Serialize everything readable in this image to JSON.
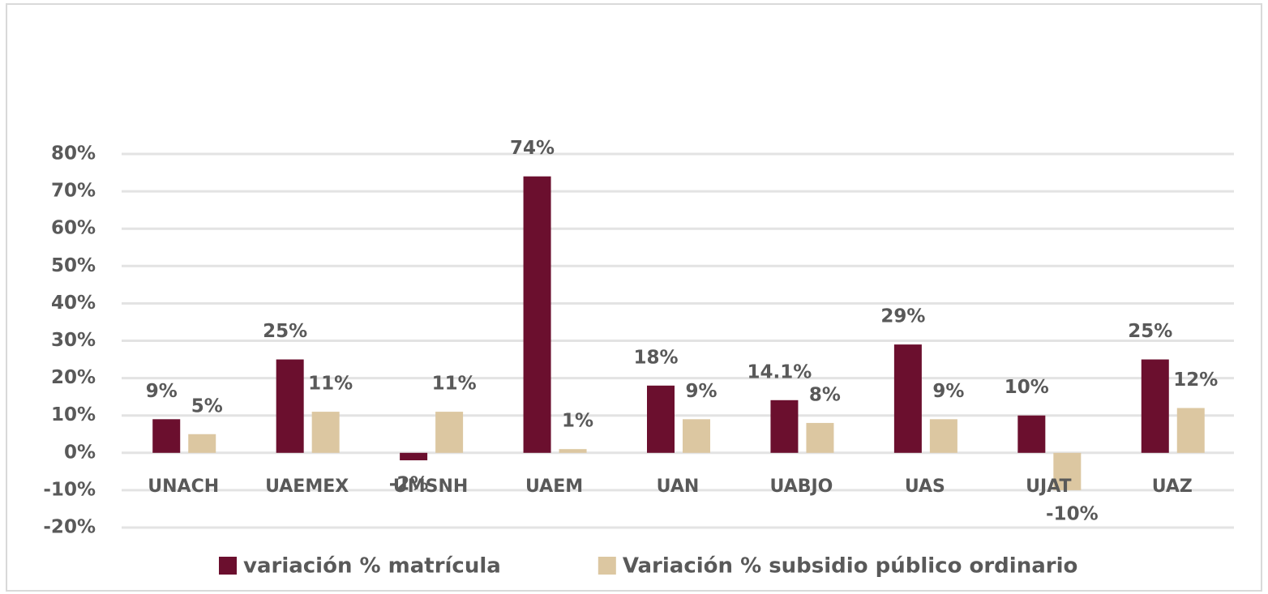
{
  "chart_data": {
    "type": "bar",
    "categories": [
      "UNACH",
      "UAEMEX",
      "UMSNH",
      "UAEM",
      "UAN",
      "UABJO",
      "UAS",
      "UJAT",
      "UAZ"
    ],
    "series": [
      {
        "name": "variación % matrícula",
        "color": "#6b0f2e",
        "values": [
          9,
          25,
          -2,
          74,
          18,
          14.1,
          29,
          10,
          25
        ],
        "value_labels": [
          "9%",
          "25%",
          "-2%",
          "74%",
          "18%",
          "14.1%",
          "29%",
          "10%",
          "25%"
        ]
      },
      {
        "name": "Variación % subsidio público ordinario",
        "color": "#dcc7a1",
        "values": [
          5,
          11,
          11,
          1,
          9,
          8,
          9,
          -10,
          12
        ],
        "value_labels": [
          "5%",
          "11%",
          "11%",
          "1%",
          "9%",
          "8%",
          "9%",
          "-10%",
          "12%"
        ]
      }
    ],
    "ylim": [
      -20,
      80
    ],
    "yticks": [
      {
        "value": -20,
        "label": "-20%"
      },
      {
        "value": -10,
        "label": "-10%"
      },
      {
        "value": 0,
        "label": "0%"
      },
      {
        "value": 10,
        "label": "10%"
      },
      {
        "value": 20,
        "label": "20%"
      },
      {
        "value": 30,
        "label": "30%"
      },
      {
        "value": 40,
        "label": "40%"
      },
      {
        "value": 50,
        "label": "50%"
      },
      {
        "value": 60,
        "label": "60%"
      },
      {
        "value": 70,
        "label": "70%"
      },
      {
        "value": 80,
        "label": "80%"
      }
    ],
    "grid": true,
    "legend": "bottom"
  }
}
